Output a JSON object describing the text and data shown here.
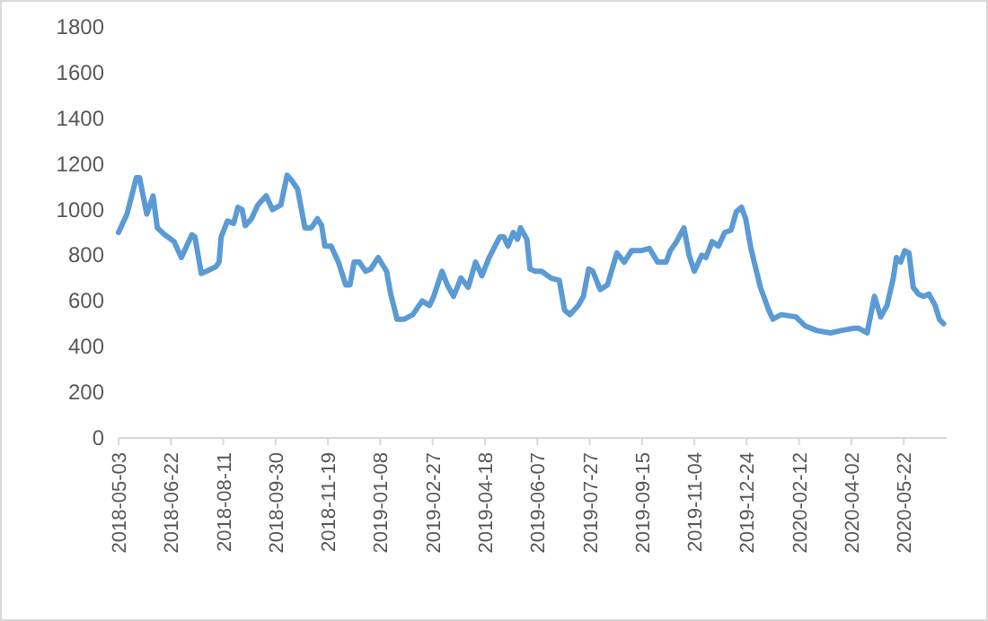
{
  "chart_data": {
    "type": "line",
    "x": [
      "2018-05-03",
      "2018-05-07",
      "2018-05-11",
      "2018-05-20",
      "2018-05-23",
      "2018-05-30",
      "2018-06-05",
      "2018-06-09",
      "2018-06-16",
      "2018-06-25",
      "2018-07-02",
      "2018-07-12",
      "2018-07-15",
      "2018-07-21",
      "2018-07-26",
      "2018-08-04",
      "2018-08-07",
      "2018-08-09",
      "2018-08-15",
      "2018-08-21",
      "2018-08-25",
      "2018-08-29",
      "2018-09-01",
      "2018-09-07",
      "2018-09-13",
      "2018-09-21",
      "2018-09-27",
      "2018-10-05",
      "2018-10-11",
      "2018-10-15",
      "2018-10-21",
      "2018-10-28",
      "2018-11-03",
      "2018-11-09",
      "2018-11-13",
      "2018-11-16",
      "2018-11-22",
      "2018-11-29",
      "2018-12-06",
      "2018-12-10",
      "2018-12-14",
      "2018-12-19",
      "2018-12-25",
      "2018-12-30",
      "2019-01-06",
      "2019-01-14",
      "2019-01-18",
      "2019-01-24",
      "2019-01-31",
      "2019-02-08",
      "2019-02-17",
      "2019-02-24",
      "2019-02-28",
      "2019-03-08",
      "2019-03-13",
      "2019-03-19",
      "2019-03-26",
      "2019-04-02",
      "2019-04-09",
      "2019-04-15",
      "2019-04-22",
      "2019-05-02",
      "2019-05-06",
      "2019-05-10",
      "2019-05-15",
      "2019-05-19",
      "2019-05-22",
      "2019-05-28",
      "2019-05-31",
      "2019-06-05",
      "2019-06-11",
      "2019-06-20",
      "2019-06-28",
      "2019-07-03",
      "2019-07-08",
      "2019-07-16",
      "2019-07-21",
      "2019-07-26",
      "2019-07-30",
      "2019-08-06",
      "2019-08-13",
      "2019-08-22",
      "2019-08-29",
      "2019-09-05",
      "2019-09-14",
      "2019-09-22",
      "2019-09-30",
      "2019-10-08",
      "2019-10-12",
      "2019-10-18",
      "2019-10-25",
      "2019-10-30",
      "2019-11-04",
      "2019-11-11",
      "2019-11-15",
      "2019-11-21",
      "2019-11-27",
      "2019-12-03",
      "2019-12-09",
      "2019-12-14",
      "2019-12-19",
      "2019-12-23",
      "2019-12-28",
      "2020-01-06",
      "2020-01-14",
      "2020-01-18",
      "2020-01-26",
      "2020-02-09",
      "2020-02-18",
      "2020-02-29",
      "2020-03-13",
      "2020-03-23",
      "2020-04-04",
      "2020-04-09",
      "2020-04-17",
      "2020-04-24",
      "2020-04-30",
      "2020-05-06",
      "2020-05-12",
      "2020-05-15",
      "2020-05-19",
      "2020-05-23",
      "2020-05-27",
      "2020-05-31",
      "2020-06-05",
      "2020-06-10",
      "2020-06-15",
      "2020-06-21",
      "2020-06-25",
      "2020-06-29"
    ],
    "series": [
      {
        "color": "#5b9bd5",
        "values": [
          900,
          940,
          980,
          1140,
          1140,
          980,
          1060,
          920,
          890,
          860,
          790,
          890,
          880,
          720,
          730,
          750,
          770,
          880,
          950,
          940,
          1010,
          1000,
          930,
          960,
          1020,
          1060,
          1000,
          1020,
          1150,
          1130,
          1090,
          920,
          920,
          960,
          930,
          840,
          840,
          770,
          670,
          670,
          770,
          770,
          730,
          740,
          790,
          730,
          630,
          520,
          520,
          540,
          600,
          580,
          620,
          730,
          670,
          620,
          700,
          660,
          770,
          710,
          790,
          880,
          880,
          840,
          900,
          870,
          920,
          870,
          740,
          730,
          730,
          700,
          690,
          560,
          540,
          580,
          620,
          740,
          730,
          650,
          670,
          810,
          770,
          820,
          820,
          830,
          770,
          770,
          820,
          860,
          920,
          800,
          730,
          800,
          790,
          860,
          840,
          900,
          910,
          990,
          1010,
          960,
          830,
          660,
          560,
          520,
          540,
          530,
          490,
          470,
          460,
          470,
          480,
          480,
          460,
          620,
          530,
          580,
          700,
          790,
          770,
          820,
          810,
          660,
          630,
          620,
          630,
          580,
          520,
          500
        ]
      }
    ],
    "xlim": [
      "2018-05-03",
      "2020-07-02"
    ],
    "xticks": [
      "2018-05-03",
      "2018-06-22",
      "2018-08-11",
      "2018-09-30",
      "2018-11-19",
      "2019-01-08",
      "2019-02-27",
      "2019-04-18",
      "2019-06-07",
      "2019-07-27",
      "2019-09-15",
      "2019-11-04",
      "2019-12-24",
      "2020-02-12",
      "2020-04-02",
      "2020-05-22"
    ],
    "ylim": [
      0,
      1800
    ],
    "yticks": [
      0,
      200,
      400,
      600,
      800,
      1000,
      1200,
      1400,
      1600,
      1800
    ],
    "marker": "none",
    "line_style": "solid"
  }
}
